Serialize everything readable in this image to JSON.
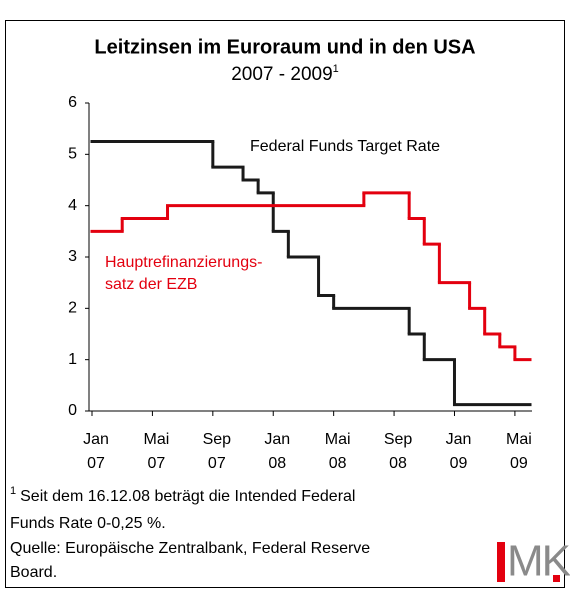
{
  "chart_data": {
    "type": "step",
    "title": "Leitzinsen im Euroraum und in den USA",
    "subtitle": "2007 - 2009",
    "subtitle_note": "1",
    "xlim": [
      "2007-01",
      "2009-06"
    ],
    "xticks": [
      {
        "value": "2007-01",
        "label": [
          "Jan",
          "07"
        ]
      },
      {
        "value": "2007-05",
        "label": [
          "Mai",
          "07"
        ]
      },
      {
        "value": "2007-09",
        "label": [
          "Sep",
          "07"
        ]
      },
      {
        "value": "2008-01",
        "label": [
          "Jan",
          "08"
        ]
      },
      {
        "value": "2008-05",
        "label": [
          "Mai",
          "08"
        ]
      },
      {
        "value": "2008-09",
        "label": [
          "Sep",
          "08"
        ]
      },
      {
        "value": "2009-01",
        "label": [
          "Jan",
          "09"
        ]
      },
      {
        "value": "2009-05",
        "label": [
          "Mai",
          "09"
        ]
      }
    ],
    "ylim": [
      0,
      6
    ],
    "yticks": [
      0,
      1,
      2,
      3,
      4,
      5,
      6
    ],
    "series": [
      {
        "name": [
          "Federal Funds Target Rate"
        ],
        "color": "#1a1a1a",
        "x": [
          "2007-01",
          "2007-09",
          "2007-11",
          "2007-12",
          "2008-01",
          "2008-02",
          "2008-04",
          "2008-05",
          "2008-10",
          "2008-11",
          "2009-01"
        ],
        "values": [
          5.25,
          4.75,
          4.5,
          4.25,
          3.5,
          3.0,
          2.25,
          2.0,
          1.5,
          1.0,
          0.125
        ]
      },
      {
        "name": [
          "Hauptrefinanzierungs-",
          "satz der EZB"
        ],
        "color": "#e3000f",
        "x": [
          "2007-01",
          "2007-03",
          "2007-06",
          "2008-07",
          "2008-10",
          "2008-11",
          "2008-12",
          "2009-02",
          "2009-03",
          "2009-04",
          "2009-05"
        ],
        "values": [
          3.5,
          3.75,
          4.0,
          4.25,
          3.75,
          3.25,
          2.5,
          2.0,
          1.5,
          1.25,
          1.0
        ]
      }
    ],
    "footnote": {
      "marker": "1",
      "lines": [
        "Seit dem 16.12.08 beträgt die Intended Federal",
        "Funds Rate 0-0,25 %."
      ]
    },
    "source": [
      "Quelle: Europäische Zentralbank, Federal Reserve",
      "Board."
    ],
    "logo": "MK"
  }
}
